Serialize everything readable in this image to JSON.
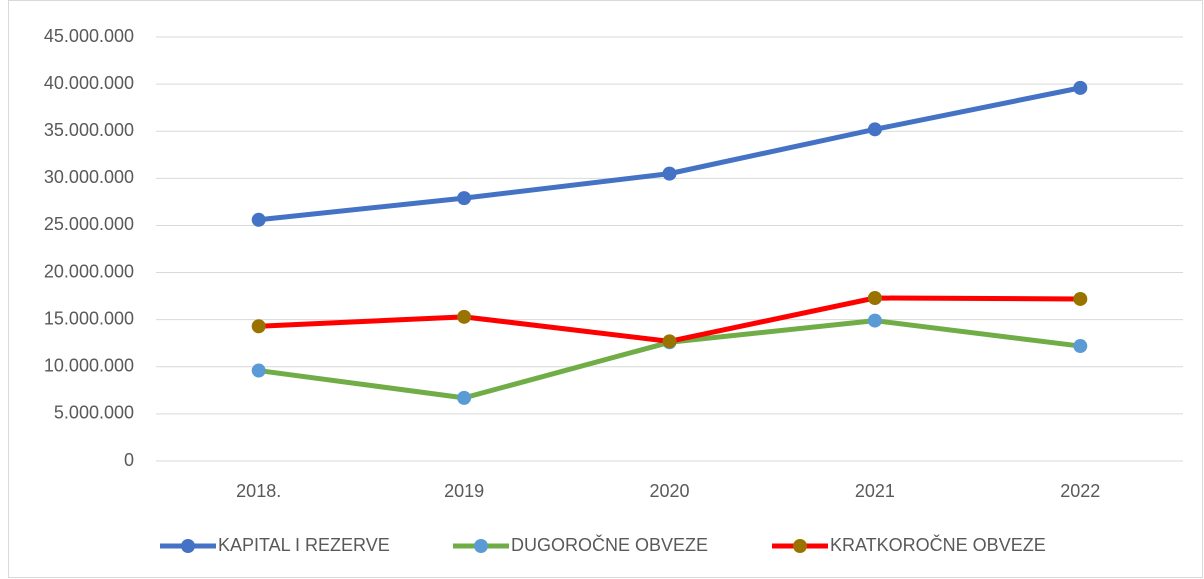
{
  "chart_data": {
    "type": "line",
    "categories": [
      "2018.",
      "2019",
      "2020",
      "2021",
      "2022"
    ],
    "series": [
      {
        "name": "KAPITAL I REZERVE",
        "color": "#4472c4",
        "marker_color": "#4472c4",
        "values": [
          25600000,
          27900000,
          30500000,
          35200000,
          39600000
        ]
      },
      {
        "name": "DUGOROČNE OBVEZE",
        "color": "#70ad47",
        "marker_color": "#5b9bd5",
        "values": [
          9600000,
          6700000,
          12600000,
          14900000,
          12200000
        ]
      },
      {
        "name": "KRATKOROČNE OBVEZE",
        "color": "#ff0000",
        "marker_color": "#997300",
        "values": [
          14300000,
          15300000,
          12700000,
          17300000,
          17200000
        ]
      }
    ],
    "ylim": [
      0,
      45000000
    ],
    "yticks": [
      0,
      {
        "value": 5000000,
        "label": "5.000.000"
      },
      {
        "value": 10000000,
        "label": "10.000.000"
      },
      {
        "value": 15000000,
        "label": "15.000.000"
      },
      {
        "value": 20000000,
        "label": "20.000.000"
      },
      {
        "value": 25000000,
        "label": "25.000.000"
      },
      {
        "value": 30000000,
        "label": "30.000.000"
      },
      {
        "value": 35000000,
        "label": "35.000.000"
      },
      {
        "value": 40000000,
        "label": "40.000.000"
      },
      {
        "value": 45000000,
        "label": "45.000.000"
      }
    ],
    "grid": true,
    "legend": "bottom"
  }
}
